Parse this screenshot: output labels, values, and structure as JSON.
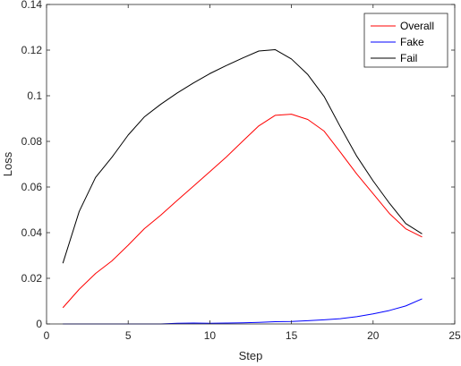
{
  "chart_data": {
    "type": "line",
    "title": "",
    "xlabel": "Step",
    "ylabel": "Loss",
    "xlim": [
      0,
      25
    ],
    "ylim": [
      0,
      0.14
    ],
    "xticks": [
      0,
      5,
      10,
      15,
      20,
      25
    ],
    "xtick_labels": [
      "0",
      "5",
      "10",
      "15",
      "20",
      "25"
    ],
    "yticks": [
      0,
      0.02,
      0.04,
      0.06,
      0.08,
      0.1,
      0.12,
      0.14
    ],
    "ytick_labels": [
      "0",
      "0.02",
      "0.04",
      "0.06",
      "0.08",
      "0.1",
      "0.12",
      "0.14"
    ],
    "grid": false,
    "legend": "top-right",
    "x": [
      1,
      2,
      3,
      4,
      5,
      6,
      7,
      8,
      9,
      10,
      11,
      12,
      13,
      14,
      15,
      16,
      17,
      18,
      19,
      20,
      21,
      22,
      23
    ],
    "series": [
      {
        "name": "Overall",
        "color": "#ff0000",
        "values": [
          0.0071,
          0.0152,
          0.0221,
          0.0276,
          0.0345,
          0.0418,
          0.0477,
          0.0541,
          0.0604,
          0.0667,
          0.0731,
          0.08,
          0.0868,
          0.0914,
          0.0919,
          0.0896,
          0.0845,
          0.0752,
          0.0657,
          0.0571,
          0.0484,
          0.0417,
          0.0381
        ]
      },
      {
        "name": "Fake",
        "color": "#0000ff",
        "values": [
          0.0,
          0.0,
          0.0,
          0.0,
          0.0,
          0.0,
          0.0,
          0.0003,
          0.0004,
          0.0003,
          0.0004,
          0.0005,
          0.0007,
          0.001,
          0.0011,
          0.0014,
          0.0018,
          0.0023,
          0.0032,
          0.0044,
          0.0059,
          0.0079,
          0.011
        ]
      },
      {
        "name": "Fail",
        "color": "#000000",
        "values": [
          0.0266,
          0.0493,
          0.0642,
          0.073,
          0.0828,
          0.0908,
          0.0963,
          0.1012,
          0.1056,
          0.1097,
          0.1132,
          0.1165,
          0.1196,
          0.1202,
          0.1161,
          0.1093,
          0.0997,
          0.0863,
          0.0735,
          0.0627,
          0.0529,
          0.044,
          0.0395
        ]
      }
    ]
  }
}
